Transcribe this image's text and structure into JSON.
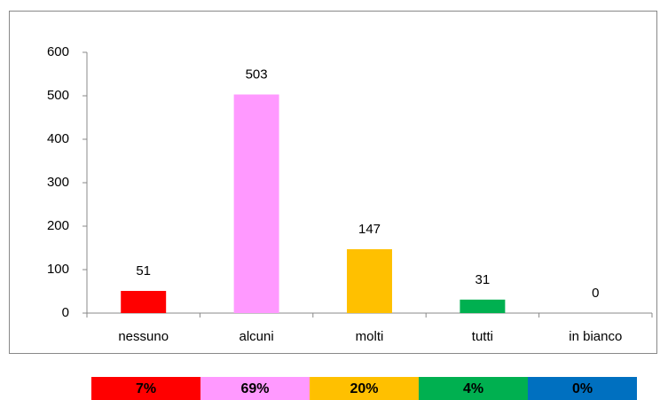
{
  "chart_data": {
    "type": "bar",
    "categories": [
      "nessuno",
      "alcuni",
      "molti",
      "tutti",
      "in bianco"
    ],
    "values": [
      51,
      503,
      147,
      31,
      0
    ],
    "colors": [
      "#ff0000",
      "#ff99ff",
      "#ffc000",
      "#00b050",
      "#0070c0"
    ],
    "ylim": [
      0,
      600
    ],
    "yticks": [
      0,
      100,
      200,
      300,
      400,
      500,
      600
    ],
    "grid": false,
    "percentages": [
      7,
      69,
      20,
      4,
      0
    ],
    "percentage_labels": [
      "7%",
      "69%",
      "20%",
      "4%",
      "0%"
    ]
  }
}
